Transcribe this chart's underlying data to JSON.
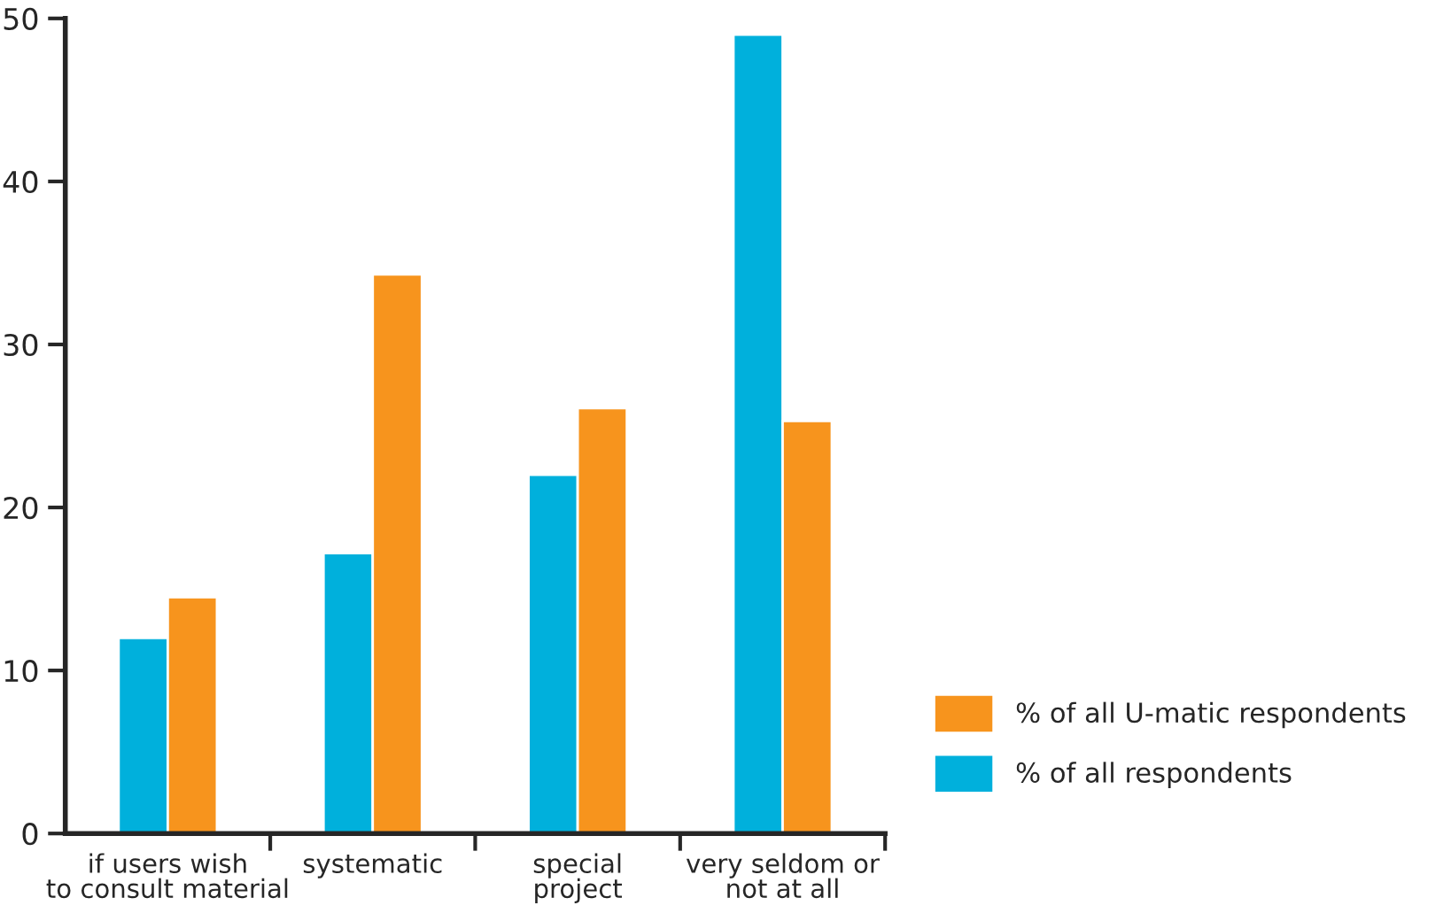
{
  "chart_data": {
    "type": "bar",
    "categories": [
      "if users wish\nto consult material",
      "systematic",
      "special\nproject",
      "very seldom or\nnot at all"
    ],
    "series": [
      {
        "name": "% of all U-matic respondents",
        "color": "#f7941d",
        "values": [
          14.5,
          34.3,
          26.1,
          25.3
        ]
      },
      {
        "name": "% of all respondents",
        "color": "#00b0dc",
        "values": [
          12,
          17.2,
          22,
          49
        ]
      }
    ],
    "ylim": [
      0,
      50
    ],
    "yticks": [
      0,
      10,
      20,
      30,
      40,
      50
    ],
    "grid": false,
    "legend": "bottom right"
  }
}
